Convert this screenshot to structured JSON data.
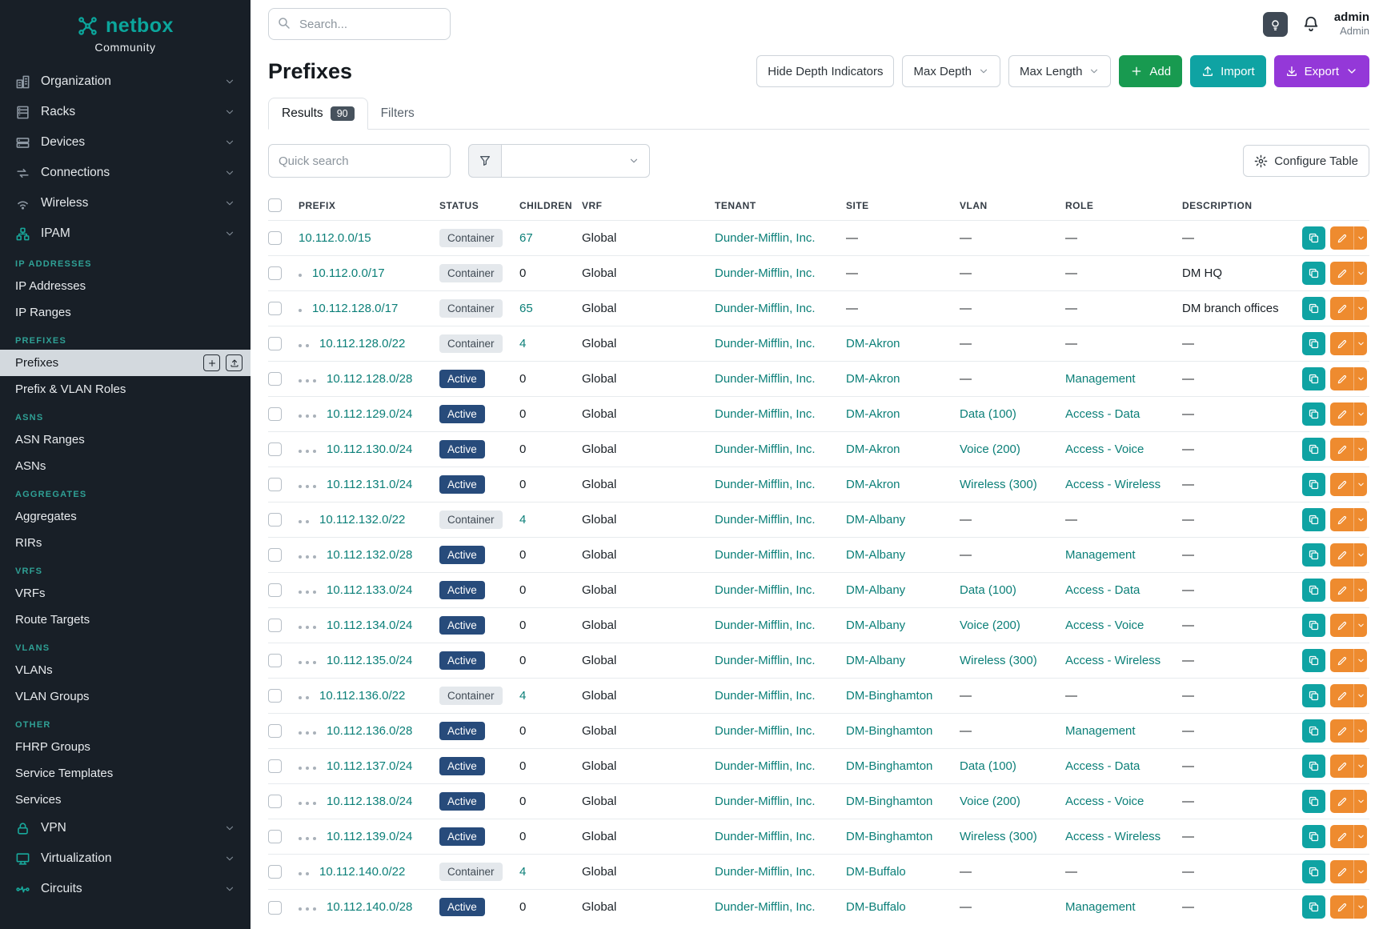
{
  "brand": {
    "name": "netbox",
    "subtitle": "Community"
  },
  "topbar": {
    "search_placeholder": "Search...",
    "user_name": "admin",
    "user_role": "Admin"
  },
  "sidebar": {
    "top_nav": [
      {
        "label": "Organization",
        "icon": "organization"
      },
      {
        "label": "Racks",
        "icon": "racks"
      },
      {
        "label": "Devices",
        "icon": "devices"
      },
      {
        "label": "Connections",
        "icon": "connections"
      },
      {
        "label": "Wireless",
        "icon": "wireless"
      },
      {
        "label": "IPAM",
        "icon": "ipam"
      }
    ],
    "ipam_sections": [
      {
        "heading": "IP ADDRESSES",
        "items": [
          {
            "label": "IP Addresses"
          },
          {
            "label": "IP Ranges"
          }
        ]
      },
      {
        "heading": "PREFIXES",
        "items": [
          {
            "label": "Prefixes",
            "active": true
          },
          {
            "label": "Prefix & VLAN Roles"
          }
        ]
      },
      {
        "heading": "ASNS",
        "items": [
          {
            "label": "ASN Ranges"
          },
          {
            "label": "ASNs"
          }
        ]
      },
      {
        "heading": "AGGREGATES",
        "items": [
          {
            "label": "Aggregates"
          },
          {
            "label": "RIRs"
          }
        ]
      },
      {
        "heading": "VRFS",
        "items": [
          {
            "label": "VRFs"
          },
          {
            "label": "Route Targets"
          }
        ]
      },
      {
        "heading": "VLANS",
        "items": [
          {
            "label": "VLANs"
          },
          {
            "label": "VLAN Groups"
          }
        ]
      },
      {
        "heading": "OTHER",
        "items": [
          {
            "label": "FHRP Groups"
          },
          {
            "label": "Service Templates"
          },
          {
            "label": "Services"
          }
        ]
      }
    ],
    "bottom_nav": [
      {
        "label": "VPN",
        "icon": "vpn"
      },
      {
        "label": "Virtualization",
        "icon": "virtualization"
      },
      {
        "label": "Circuits",
        "icon": "circuits"
      }
    ]
  },
  "page": {
    "title": "Prefixes",
    "hide_depth_label": "Hide Depth Indicators",
    "max_depth_label": "Max Depth",
    "max_length_label": "Max Length",
    "add_label": "Add",
    "import_label": "Import",
    "export_label": "Export",
    "tabs": [
      {
        "label": "Results",
        "badge": "90",
        "active": true
      },
      {
        "label": "Filters"
      }
    ],
    "quick_search_placeholder": "Quick search",
    "configure_table_label": "Configure Table"
  },
  "colors": {
    "accent_teal": "#0fa3a3",
    "link_teal": "#0b7f78",
    "status_active": "#274b7b",
    "status_container": "#e4e8ec",
    "add_green": "#189a50",
    "export_purple": "#9438d8",
    "edit_orange": "#ee8b2f",
    "sidebar_bg": "#181f27"
  },
  "table": {
    "columns": [
      "PREFIX",
      "STATUS",
      "CHILDREN",
      "VRF",
      "TENANT",
      "SITE",
      "VLAN",
      "ROLE",
      "DESCRIPTION"
    ],
    "rows": [
      {
        "depth": 0,
        "prefix": "10.112.0.0/15",
        "status": "Container",
        "children": "67",
        "children_link": true,
        "vrf": "Global",
        "tenant": "Dunder-Mifflin, Inc.",
        "site": "",
        "vlan": "",
        "role": "",
        "description": ""
      },
      {
        "depth": 1,
        "prefix": "10.112.0.0/17",
        "status": "Container",
        "children": "0",
        "children_link": false,
        "vrf": "Global",
        "tenant": "Dunder-Mifflin, Inc.",
        "site": "",
        "vlan": "",
        "role": "",
        "description": "DM HQ"
      },
      {
        "depth": 1,
        "prefix": "10.112.128.0/17",
        "status": "Container",
        "children": "65",
        "children_link": true,
        "vrf": "Global",
        "tenant": "Dunder-Mifflin, Inc.",
        "site": "",
        "vlan": "",
        "role": "",
        "description": "DM branch offices"
      },
      {
        "depth": 2,
        "prefix": "10.112.128.0/22",
        "status": "Container",
        "children": "4",
        "children_link": true,
        "vrf": "Global",
        "tenant": "Dunder-Mifflin, Inc.",
        "site": "DM-Akron",
        "vlan": "",
        "role": "",
        "description": ""
      },
      {
        "depth": 3,
        "prefix": "10.112.128.0/28",
        "status": "Active",
        "children": "0",
        "children_link": false,
        "vrf": "Global",
        "tenant": "Dunder-Mifflin, Inc.",
        "site": "DM-Akron",
        "vlan": "",
        "role": "Management",
        "description": ""
      },
      {
        "depth": 3,
        "prefix": "10.112.129.0/24",
        "status": "Active",
        "children": "0",
        "children_link": false,
        "vrf": "Global",
        "tenant": "Dunder-Mifflin, Inc.",
        "site": "DM-Akron",
        "vlan": "Data (100)",
        "role": "Access - Data",
        "description": ""
      },
      {
        "depth": 3,
        "prefix": "10.112.130.0/24",
        "status": "Active",
        "children": "0",
        "children_link": false,
        "vrf": "Global",
        "tenant": "Dunder-Mifflin, Inc.",
        "site": "DM-Akron",
        "vlan": "Voice (200)",
        "role": "Access - Voice",
        "description": ""
      },
      {
        "depth": 3,
        "prefix": "10.112.131.0/24",
        "status": "Active",
        "children": "0",
        "children_link": false,
        "vrf": "Global",
        "tenant": "Dunder-Mifflin, Inc.",
        "site": "DM-Akron",
        "vlan": "Wireless (300)",
        "role": "Access - Wireless",
        "description": ""
      },
      {
        "depth": 2,
        "prefix": "10.112.132.0/22",
        "status": "Container",
        "children": "4",
        "children_link": true,
        "vrf": "Global",
        "tenant": "Dunder-Mifflin, Inc.",
        "site": "DM-Albany",
        "vlan": "",
        "role": "",
        "description": ""
      },
      {
        "depth": 3,
        "prefix": "10.112.132.0/28",
        "status": "Active",
        "children": "0",
        "children_link": false,
        "vrf": "Global",
        "tenant": "Dunder-Mifflin, Inc.",
        "site": "DM-Albany",
        "vlan": "",
        "role": "Management",
        "description": ""
      },
      {
        "depth": 3,
        "prefix": "10.112.133.0/24",
        "status": "Active",
        "children": "0",
        "children_link": false,
        "vrf": "Global",
        "tenant": "Dunder-Mifflin, Inc.",
        "site": "DM-Albany",
        "vlan": "Data (100)",
        "role": "Access - Data",
        "description": ""
      },
      {
        "depth": 3,
        "prefix": "10.112.134.0/24",
        "status": "Active",
        "children": "0",
        "children_link": false,
        "vrf": "Global",
        "tenant": "Dunder-Mifflin, Inc.",
        "site": "DM-Albany",
        "vlan": "Voice (200)",
        "role": "Access - Voice",
        "description": ""
      },
      {
        "depth": 3,
        "prefix": "10.112.135.0/24",
        "status": "Active",
        "children": "0",
        "children_link": false,
        "vrf": "Global",
        "tenant": "Dunder-Mifflin, Inc.",
        "site": "DM-Albany",
        "vlan": "Wireless (300)",
        "role": "Access - Wireless",
        "description": ""
      },
      {
        "depth": 2,
        "prefix": "10.112.136.0/22",
        "status": "Container",
        "children": "4",
        "children_link": true,
        "vrf": "Global",
        "tenant": "Dunder-Mifflin, Inc.",
        "site": "DM-Binghamton",
        "vlan": "",
        "role": "",
        "description": ""
      },
      {
        "depth": 3,
        "prefix": "10.112.136.0/28",
        "status": "Active",
        "children": "0",
        "children_link": false,
        "vrf": "Global",
        "tenant": "Dunder-Mifflin, Inc.",
        "site": "DM-Binghamton",
        "vlan": "",
        "role": "Management",
        "description": ""
      },
      {
        "depth": 3,
        "prefix": "10.112.137.0/24",
        "status": "Active",
        "children": "0",
        "children_link": false,
        "vrf": "Global",
        "tenant": "Dunder-Mifflin, Inc.",
        "site": "DM-Binghamton",
        "vlan": "Data (100)",
        "role": "Access - Data",
        "description": ""
      },
      {
        "depth": 3,
        "prefix": "10.112.138.0/24",
        "status": "Active",
        "children": "0",
        "children_link": false,
        "vrf": "Global",
        "tenant": "Dunder-Mifflin, Inc.",
        "site": "DM-Binghamton",
        "vlan": "Voice (200)",
        "role": "Access - Voice",
        "description": ""
      },
      {
        "depth": 3,
        "prefix": "10.112.139.0/24",
        "status": "Active",
        "children": "0",
        "children_link": false,
        "vrf": "Global",
        "tenant": "Dunder-Mifflin, Inc.",
        "site": "DM-Binghamton",
        "vlan": "Wireless (300)",
        "role": "Access - Wireless",
        "description": ""
      },
      {
        "depth": 2,
        "prefix": "10.112.140.0/22",
        "status": "Container",
        "children": "4",
        "children_link": true,
        "vrf": "Global",
        "tenant": "Dunder-Mifflin, Inc.",
        "site": "DM-Buffalo",
        "vlan": "",
        "role": "",
        "description": ""
      },
      {
        "depth": 3,
        "prefix": "10.112.140.0/28",
        "status": "Active",
        "children": "0",
        "children_link": false,
        "vrf": "Global",
        "tenant": "Dunder-Mifflin, Inc.",
        "site": "DM-Buffalo",
        "vlan": "",
        "role": "Management",
        "description": ""
      }
    ]
  }
}
